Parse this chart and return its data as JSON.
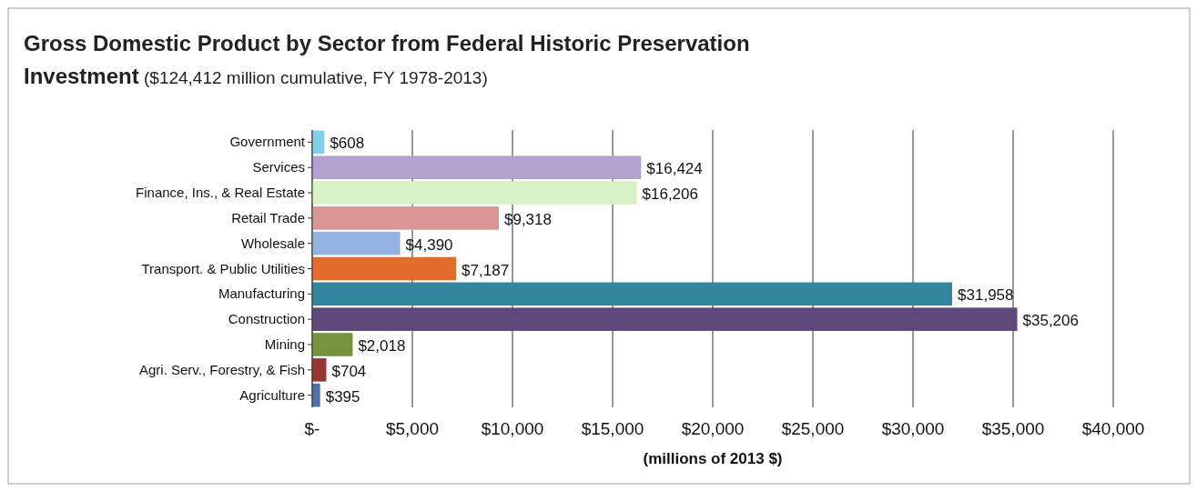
{
  "chart_data": {
    "type": "bar",
    "orientation": "horizontal",
    "title": "Gross Domestic Product by Sector from Federal Historic Preservation Investment",
    "subtitle": "($124,412 million cumulative, FY 1978-2013)",
    "xlabel": "(millions of 2013 $)",
    "categories": [
      "Government",
      "Services",
      "Finance, Ins., & Real Estate",
      "Retail Trade",
      "Wholesale",
      "Transport. & Public Utilities",
      "Manufacturing",
      "Construction",
      "Mining",
      "Agri. Serv., Forestry, & Fish",
      "Agriculture"
    ],
    "values": [
      608,
      16424,
      16206,
      9318,
      4390,
      7187,
      31958,
      35206,
      2018,
      704,
      395
    ],
    "colors": [
      "#7fd0e8",
      "#b3a2d0",
      "#d7f0c4",
      "#d99694",
      "#95b3e0",
      "#e46c2a",
      "#31859c",
      "#5f497a",
      "#77933c",
      "#953735",
      "#4f6fa8"
    ],
    "value_labels": [
      "$608",
      "$16,424",
      "$16,206",
      "$9,318",
      "$4,390",
      "$7,187",
      "$31,958",
      "$35,206",
      "$2,018",
      "$704",
      "$395"
    ],
    "xlim": [
      0,
      40000
    ],
    "xticks": [
      {
        "value": 0,
        "label": "$-"
      },
      {
        "value": 5000,
        "label": "$5,000"
      },
      {
        "value": 10000,
        "label": "$10,000"
      },
      {
        "value": 15000,
        "label": "$15,000"
      },
      {
        "value": 20000,
        "label": "$20,000"
      },
      {
        "value": 25000,
        "label": "$25,000"
      },
      {
        "value": 30000,
        "label": "$30,000"
      },
      {
        "value": 35000,
        "label": "$35,000"
      },
      {
        "value": 40000,
        "label": "$40,000"
      }
    ],
    "grid": "x"
  }
}
